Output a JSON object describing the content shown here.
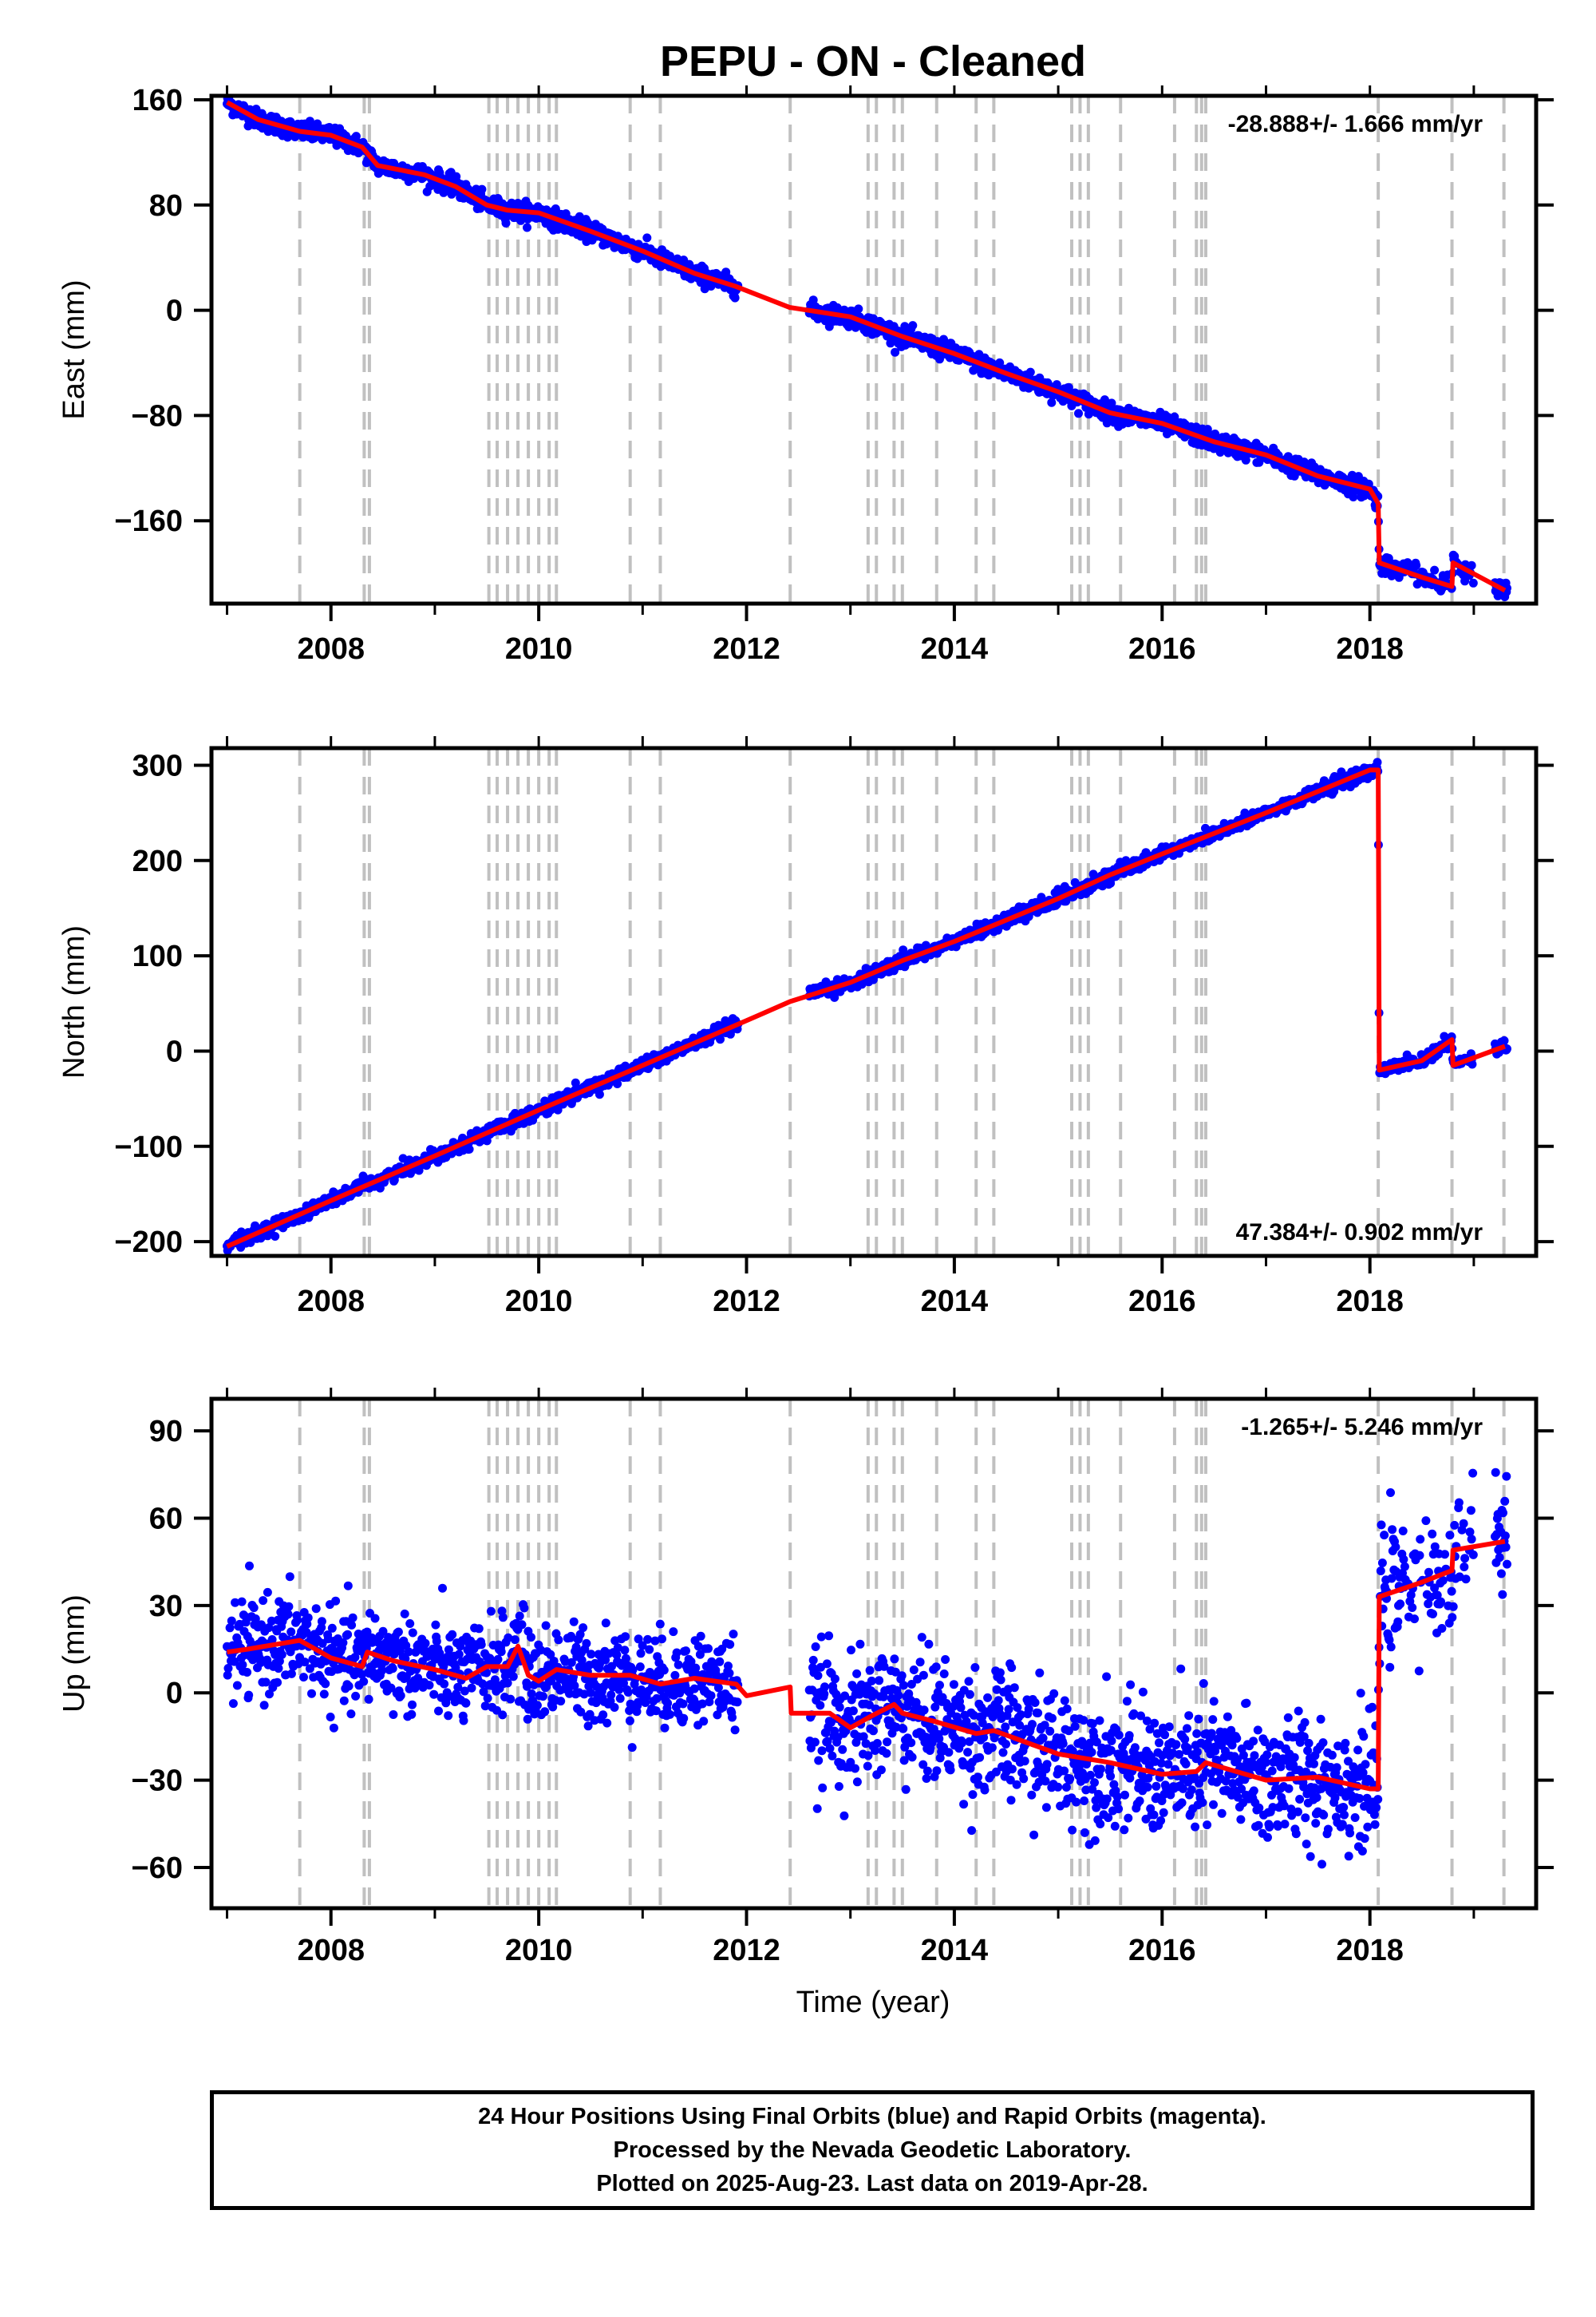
{
  "title": "PEPU  - ON - Cleaned",
  "colors": {
    "data": "#0000ff",
    "model": "#ff0000",
    "events": "#c0c0c0",
    "axis": "#000000"
  },
  "x_axis": {
    "label": "Time (year)",
    "range": [
      2006.85,
      2019.6
    ],
    "ticks": [
      2008,
      2010,
      2012,
      2014,
      2016,
      2018
    ]
  },
  "event_lines": [
    2007.7,
    2008.32,
    2008.37,
    2009.52,
    2009.6,
    2009.7,
    2009.8,
    2009.9,
    2010.0,
    2010.1,
    2010.17,
    2010.88,
    2011.17,
    2012.42,
    2013.17,
    2013.25,
    2013.42,
    2013.5,
    2013.83,
    2014.21,
    2014.38,
    2015.13,
    2015.21,
    2015.29,
    2015.6,
    2016.12,
    2016.33,
    2016.38,
    2016.42,
    2018.08,
    2018.79,
    2019.29
  ],
  "data_gaps": [
    [
      2011.92,
      2012.6
    ],
    [
      2019.0,
      2019.2
    ]
  ],
  "chart_data": [
    {
      "type": "scatter",
      "ylabel": "East (mm)",
      "ylim": [
        -223,
        163
      ],
      "yticks": [
        160,
        80,
        0,
        -80,
        -160
      ],
      "rate_label": "-28.888+/- 1.666 mm/yr",
      "rate_position": "top-right",
      "series": [
        {
          "x": [
            2007.0,
            2007.3,
            2007.7,
            2008.0,
            2008.3,
            2008.45,
            2008.9,
            2009.2,
            2009.5,
            2009.7,
            2010.0,
            2010.5,
            2011.0,
            2011.5,
            2011.9,
            2012.42,
            2012.43,
            2013.0,
            2013.5,
            2014.0,
            2014.5,
            2015.0,
            2015.5,
            2016.0,
            2016.5,
            2017.0,
            2017.5,
            2018.0,
            2018.08,
            2018.09,
            2018.5,
            2018.79,
            2018.8,
            2019.3
          ],
          "y": [
            158,
            145,
            136,
            133,
            124,
            110,
            103,
            94,
            80,
            76,
            74,
            60,
            45,
            28,
            18,
            2,
            2,
            -5,
            -20,
            -33,
            -48,
            -62,
            -78,
            -86,
            -100,
            -110,
            -126,
            -136,
            -147,
            -192,
            -203,
            -210,
            -192,
            -213
          ]
        }
      ]
    },
    {
      "type": "scatter",
      "ylabel": "North (mm)",
      "ylim": [
        -215,
        318
      ],
      "yticks": [
        300,
        200,
        100,
        0,
        -100,
        -200
      ],
      "rate_label": "47.384+/- 0.902 mm/yr",
      "rate_position": "bottom-right",
      "series": [
        {
          "x": [
            2007.0,
            2008.0,
            2009.0,
            2010.0,
            2011.0,
            2012.0,
            2012.42,
            2013.0,
            2013.5,
            2014.0,
            2015.0,
            2015.5,
            2016.0,
            2017.0,
            2018.0,
            2018.08,
            2018.09,
            2018.5,
            2018.79,
            2018.8,
            2019.3
          ],
          "y": [
            -205,
            -157,
            -110,
            -62,
            -15,
            32,
            52,
            72,
            95,
            115,
            160,
            185,
            207,
            250,
            295,
            295,
            -20,
            -10,
            12,
            -15,
            5
          ]
        }
      ]
    },
    {
      "type": "scatter",
      "ylabel": "Up (mm)",
      "ylim": [
        -74,
        101
      ],
      "yticks": [
        90,
        60,
        30,
        0,
        -30,
        -60
      ],
      "rate_label": "-1.265+/- 5.246 mm/yr",
      "rate_position": "top-right",
      "series": [
        {
          "x": [
            2007.0,
            2007.2,
            2007.7,
            2008.0,
            2008.3,
            2008.35,
            2008.6,
            2009.0,
            2009.3,
            2009.5,
            2009.7,
            2009.8,
            2009.9,
            2010.0,
            2010.17,
            2010.5,
            2010.88,
            2011.17,
            2011.5,
            2011.9,
            2012.0,
            2012.42,
            2012.43,
            2012.8,
            2013.0,
            2013.2,
            2013.42,
            2013.5,
            2013.83,
            2014.21,
            2014.38,
            2015.0,
            2015.5,
            2016.0,
            2016.33,
            2016.42,
            2017.0,
            2017.5,
            2018.0,
            2018.08,
            2018.09,
            2018.5,
            2018.79,
            2018.8,
            2019.3
          ],
          "y": [
            14,
            15,
            18,
            12,
            9,
            14,
            11,
            8,
            5,
            9,
            9,
            16,
            6,
            4,
            8,
            6,
            6,
            3,
            5,
            3,
            -1,
            2,
            -7,
            -7,
            -12,
            -8,
            -4,
            -7,
            -10,
            -14,
            -13,
            -21,
            -24,
            -28,
            -27,
            -24,
            -30,
            -29,
            -33,
            -33,
            33,
            38,
            42,
            49,
            52
          ]
        }
      ]
    }
  ],
  "footer": {
    "line1": "24 Hour Positions Using Final Orbits (blue) and Rapid Orbits (magenta).",
    "line2": "Processed by the Nevada Geodetic Laboratory.",
    "line3": "Plotted on 2025-Aug-23. Last data on 2019-Apr-28."
  }
}
